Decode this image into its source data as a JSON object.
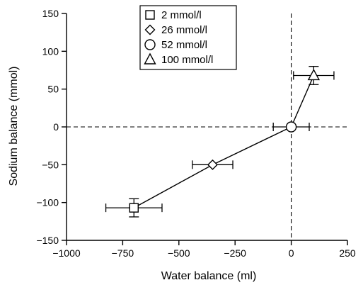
{
  "chart_data": {
    "type": "scatter",
    "title": "",
    "xlabel": "Water balance (ml)",
    "ylabel": "Sodium balance (mmol)",
    "xlim": [
      -1000,
      250
    ],
    "ylim": [
      -150,
      150
    ],
    "x_ticks": [
      -1000,
      -750,
      -500,
      -250,
      0,
      250
    ],
    "x_tick_labels": [
      "−1000",
      "−750",
      "−500",
      "−250",
      "0",
      "250"
    ],
    "y_ticks": [
      -150,
      -100,
      -50,
      0,
      50,
      100,
      150
    ],
    "y_tick_labels": [
      "−150",
      "−100",
      "−50",
      "0",
      "50",
      "100",
      "150"
    ],
    "reference_lines": {
      "x": 0,
      "y": 0,
      "style": "dashed"
    },
    "connect_points": true,
    "legend_position": "top-center",
    "series": [
      {
        "name": "2 mmol/l",
        "marker": "square",
        "x": -700,
        "y": -107,
        "x_err": 125,
        "y_err": 12
      },
      {
        "name": "26 mmol/l",
        "marker": "diamond",
        "x": -350,
        "y": -50,
        "x_err": 90,
        "y_err": 0
      },
      {
        "name": "52 mmol/l",
        "marker": "circle",
        "x": 0,
        "y": 0,
        "x_err": 80,
        "y_err": 0
      },
      {
        "name": "100 mmol/l",
        "marker": "triangle",
        "x": 100,
        "y": 68,
        "x_err": 90,
        "y_err": 12
      }
    ]
  }
}
